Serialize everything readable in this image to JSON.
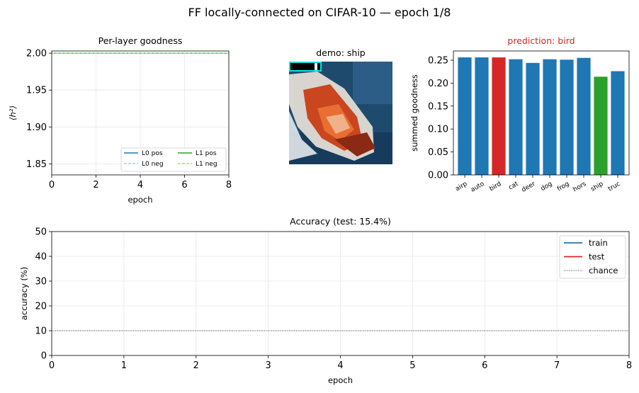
{
  "suptitle": "FF locally-connected on CIFAR-10  —  epoch 1/8",
  "colors": {
    "blue": "#1f77b4",
    "light_blue": "#a6cee3",
    "green": "#2ca02c",
    "light_green": "#98df8a",
    "red": "#d62728",
    "title_red": "#d62728",
    "cyan": "#00e5e5"
  },
  "chart_data": [
    {
      "type": "line",
      "title": "Per-layer goodness",
      "xlabel": "epoch",
      "ylabel": "⟨h²⟩",
      "xlim": [
        0,
        8
      ],
      "ylim": [
        1.835,
        2.003
      ],
      "xticks": [
        "0",
        "2",
        "4",
        "6",
        "8"
      ],
      "yticks": [
        "1.85",
        "1.90",
        "1.95",
        "2.00"
      ],
      "grid": true,
      "legend_position": "lower-right",
      "series": [
        {
          "name": "L0 pos",
          "x": [
            1
          ],
          "y": [
            2.0
          ],
          "style": "solid",
          "color": "#1f77b4"
        },
        {
          "name": "L0 neg",
          "x": [
            1
          ],
          "y": [
            2.0
          ],
          "style": "dashed",
          "color": "#a6cee3"
        },
        {
          "name": "L1 pos",
          "x": [
            1
          ],
          "y": [
            2.0
          ],
          "style": "solid",
          "color": "#2ca02c"
        },
        {
          "name": "L1 neg",
          "x": [
            1
          ],
          "y": [
            2.0
          ],
          "style": "dashed",
          "color": "#98df8a"
        }
      ]
    },
    {
      "type": "image",
      "title": "demo: ship"
    },
    {
      "type": "bar",
      "title": "prediction: bird",
      "ylabel": "summed goodness",
      "ylim": [
        0,
        0.27
      ],
      "yticks": [
        "0.00",
        "0.05",
        "0.10",
        "0.15",
        "0.20",
        "0.25"
      ],
      "categories": [
        "airp",
        "auto",
        "bird",
        "cat",
        "deer",
        "dog",
        "frog",
        "hors",
        "ship",
        "truc"
      ],
      "values": [
        0.256,
        0.256,
        0.256,
        0.252,
        0.244,
        0.252,
        0.251,
        0.255,
        0.214,
        0.226
      ],
      "predicted": "bird",
      "true_label": "ship"
    },
    {
      "type": "line",
      "title": "Accuracy  (test: 15.4%)",
      "xlabel": "epoch",
      "ylabel": "accuracy (%)",
      "xlim": [
        0,
        8
      ],
      "ylim": [
        0,
        50
      ],
      "xticks": [
        "0",
        "1",
        "2",
        "3",
        "4",
        "5",
        "6",
        "7",
        "8"
      ],
      "yticks": [
        "0",
        "10",
        "20",
        "30",
        "40",
        "50"
      ],
      "grid": true,
      "legend_position": "top-right",
      "series": [
        {
          "name": "train",
          "x": [],
          "y": [],
          "style": "solid",
          "color": "#1f77b4"
        },
        {
          "name": "test",
          "x": [
            1
          ],
          "y": [
            15.4
          ],
          "style": "solid",
          "color": "#d62728"
        },
        {
          "name": "chance",
          "x": [
            0,
            8
          ],
          "y": [
            10,
            10
          ],
          "style": "dotted",
          "color": "#000000"
        }
      ]
    }
  ]
}
